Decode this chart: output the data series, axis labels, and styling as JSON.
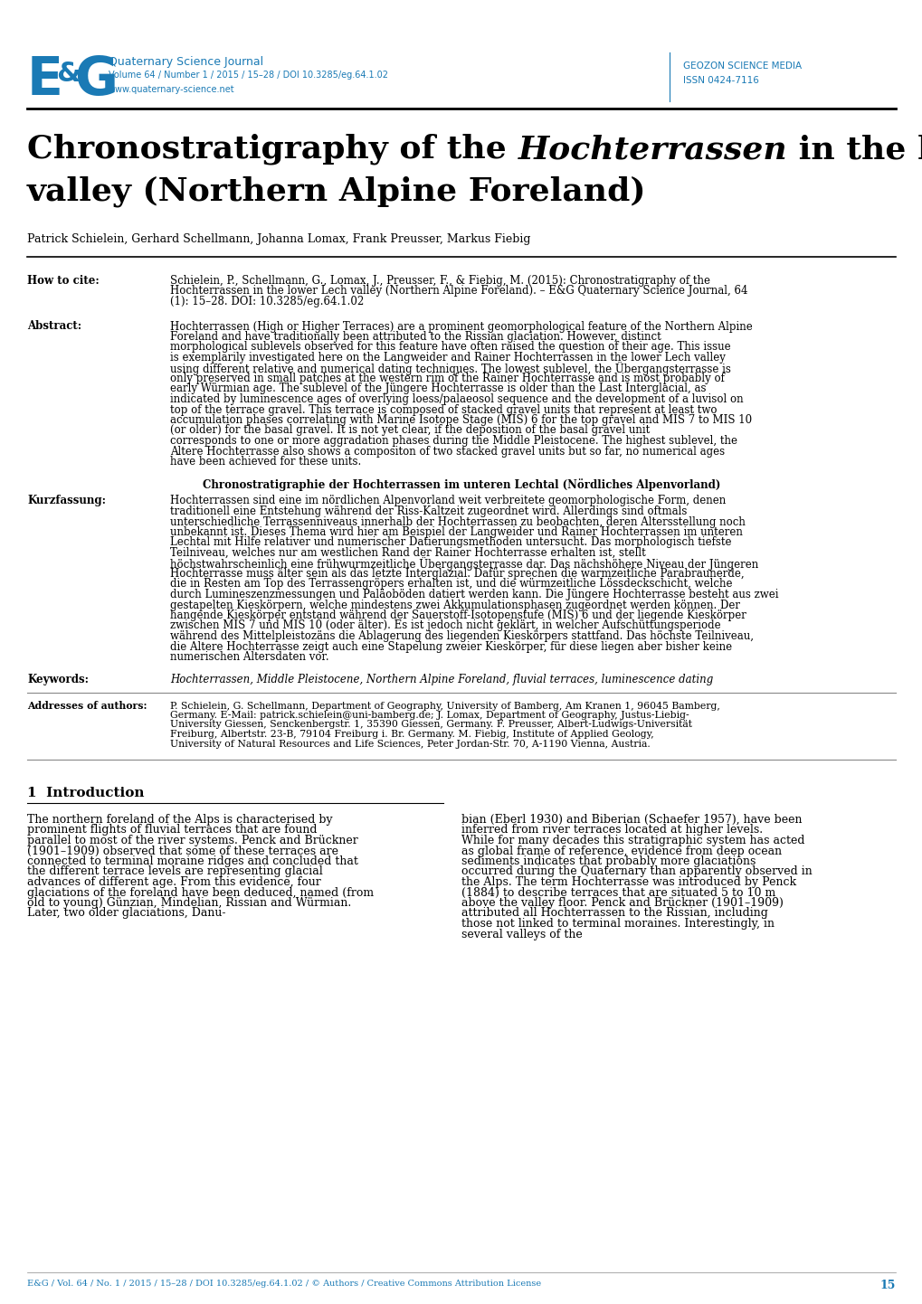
{
  "bg_color": "#ffffff",
  "journal_color": "#1a7ab5",
  "body_color": "#000000",
  "header_left": {
    "journal_name": "Quaternary Science Journal",
    "volume_info": "Volume 64 / Number 1 / 2015 / 15–28 / DOI 10.3285/eg.64.1.02",
    "website": "www.quaternary-science.net"
  },
  "header_right": {
    "line1": "GEOZON SCIENCE MEDIA",
    "line2": "ISSN 0424-7116"
  },
  "article_title_line1_pre": "Chronostratigraphy of the ",
  "article_title_italic": "Hochterrassen",
  "article_title_line1_post": " in the lower Lech",
  "article_title_line2": "valley (Northern Alpine Foreland)",
  "authors": "Patrick Schielein, Gerhard Schellmann, Johanna Lomax, Frank Preusser, Markus Fiebig",
  "how_to_cite_label": "How to cite:",
  "how_to_cite_text": "Schielein, P., Schellmann, G., Lomax, J., Preusser, F., & Fiebig, M. (2015): Chronostratigraphy of the Hochterrassen in the lower Lech valley (Northern Alpine Foreland). – E&G Quaternary Science Journal, 64 (1): 15–28. DOI: 10.3285/eg.64.1.02",
  "abstract_label": "Abstract:",
  "abstract_text": "Hochterrassen (High or Higher Terraces) are a prominent geomorphological feature of the Northern Alpine Foreland and have traditionally been attributed to the Rissian glaciation. However, distinct morphological sublevels observed for this feature have often raised the question of their age. This issue is exemplarily investigated here on the Langweider and Rainer Hochterrassen in the lower Lech valley using different relative and numerical dating techniques. The lowest sublevel, the Übergangsterrasse is only preserved in small patches at the western rim of the Rainer Hochterrasse and is most probably of early Würmian age. The sublevel of the Jüngere Hochterrasse is older than the Last Interglacial, as indicated by luminescence ages of overlying loess/palaeosol sequence and the development of a luvisol on top of the terrace gravel. This terrace is composed of stacked gravel units that represent at least two accumulation phases correlating with Marine Isotope Stage (MIS) 6 for the top gravel and MIS 7 to MIS 10 (or older) for the basal gravel. It is not yet clear, if the deposition of the basal gravel unit corresponds to one or more aggradation phases during the Middle Pleistocene. The highest sublevel, the Altere Hochterrasse also shows a compositon of two stacked gravel units but so far, no numerical ages have been achieved for these units.",
  "german_title_bold": "Chronostratigraphie der Hochterrassen im unteren Lechtal (Nördliches Alpenvorland)",
  "kurzfassung_label": "Kurzfassung:",
  "kurzfassung_text": "Hochterrassen sind eine im nördlichen Alpenvorland weit verbreitete geomorphologische Form, denen traditionell eine Entstehung während der Riss-Kaltzeit zugeordnet wird. Allerdings sind oftmals unterschiedliche Terrassenniveaus innerhalb der Hochterrassen zu beobachten, deren Altersstellung noch unbekannt ist. Dieses Thema wird hier am Beispiel der Langweider und Rainer Hochterrassen im unteren Lechtal mit Hilfe relativer und numerischer Datierungsmethoden untersucht. Das morphologisch tiefste Teilniveau, welches nur am westlichen Rand der Rainer Hochterrasse erhalten ist, stellt höchstwahrscheinlich eine frühwurmzeitliche Übergangsterrasse dar. Das nächshöhere Niveau der Jüngeren Hochterrasse muss älter sein als das letzte Interglazial. Dafür sprechen die warmzeitliche Parabraunerde, die in Resten am Top des Terrassengröpers erhalten ist, und die würmzeitliche Lössdeckschicht, welche durch Lumineszenzmessungen und Paläoböden datiert werden kann. Die Jüngere Hochterrasse besteht aus zwei gestapelten Kieskörpern, welche mindestens zwei Akkumulationsphasen zugeordnet werden können. Der hangende Kieskörper entstand während der Sauerstoff-Isotopenstufe (MIS) 6 und der liegende Kieskörper zwischen MIS 7 und MIS 10 (oder älter). Es ist jedoch nicht geklärt, in welcher Aufschüttungsperiode während des Mittelpleistozäns die Ablagerung des liegenden Kieskörpers stattfand. Das höchste Teilniveau, die Altere Hochterrasse zeigt auch eine Stapelung zweier Kieskörper, für diese liegen aber bisher keine numerischen Altersdaten vor.",
  "keywords_label": "Keywords:",
  "keywords_text": "Hochterrassen, Middle Pleistocene, Northern Alpine Foreland, fluvial terraces, luminescence dating",
  "addresses_label": "Addresses of authors:",
  "addresses_text": "P. Schielein, G. Schellmann, Department of Geography, University of Bamberg, Am Kranen 1, 96045 Bamberg, Germany. E-Mail: patrick.schielein@uni-bamberg.de; J. Lomax, Department of Geography, Justus-Liebig-University Giessen, Senckenbergstr. 1, 35390 Giessen, Germany. F. Preusser, Albert-Ludwigs-Universität Freiburg, Albertstr. 23-B, 79104 Freiburg i. Br. Germany. M. Fiebig, Institute of Applied Geology, University of Natural Resources and Life Sciences, Peter Jordan-Str. 70, A-1190 Vienna, Austria.",
  "section_title": "1  Introduction",
  "intro_text_col1": "The northern foreland of the Alps is characterised by prominent flights of fluvial terraces that are found parallel to most of the river systems. Penck and Brückner (1901–1909) observed that some of these terraces are connected to terminal moraine ridges and concluded that the different terrace levels are representing glacial advances of different age. From this evidence, four glaciations of the foreland have been deduced, named (from old to young) Günzian, Mindelian, Rissian and Würmian. Later, two older glaciations, Danu-",
  "intro_text_col2": "bian (Eberl 1930) and Biberian (Schaefer 1957), have been inferred from river terraces located at higher levels. While for many decades this stratigraphic system has acted as global frame of reference, evidence from deep ocean sediments indicates that probably more glaciations occurred during the Quaternary than apparently observed in the Alps. The term Hochterrasse was introduced by Penck (1884) to describe terraces that are situated 5 to 10 m above the valley floor. Penck and Brückner (1901–1909) attributed all Hochterrassen to the Rissian, including those not linked to terminal moraines. Interestingly, in several valleys of the",
  "footer_text": "E&G / Vol. 64 / No. 1 / 2015 / 15–28 / DOI 10.3285/eg.64.1.02 / © Authors / Creative Commons Attribution License",
  "footer_page": "15"
}
